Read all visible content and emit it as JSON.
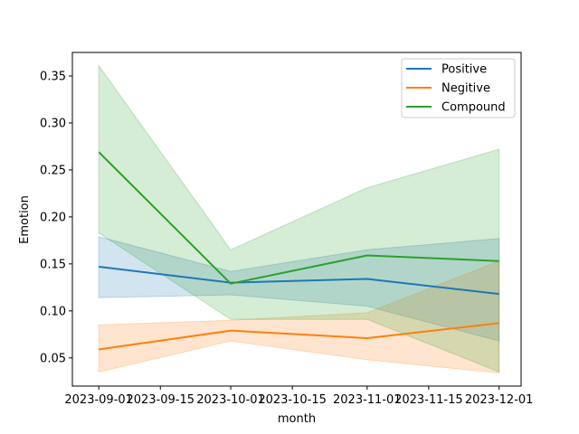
{
  "chart_data": {
    "type": "line",
    "xlabel": "month",
    "ylabel": "Emotion",
    "x": [
      "2023-09-01",
      "2023-10-01",
      "2023-11-01",
      "2023-12-01"
    ],
    "x_ticks": [
      "2023-09-01",
      "2023-09-15",
      "2023-10-01",
      "2023-10-15",
      "2023-11-01",
      "2023-11-15",
      "2023-12-01"
    ],
    "x_tick_labels": [
      "2023-09-01",
      "2023-09-15",
      "2023-10-01",
      "2023-10-15",
      "2023-11-01",
      "2023-11-15",
      "2023-12-01"
    ],
    "xlim": [
      "2023-08-26",
      "2023-12-06"
    ],
    "ylim": [
      0.02,
      0.375
    ],
    "y_ticks": [
      0.05,
      0.1,
      0.15,
      0.2,
      0.25,
      0.3,
      0.35
    ],
    "y_tick_labels": [
      "0.05",
      "0.10",
      "0.15",
      "0.20",
      "0.25",
      "0.30",
      "0.35"
    ],
    "grid": false,
    "legend_position": "top-right",
    "series": [
      {
        "name": "Positive",
        "color": "#1f77b4",
        "values": [
          0.147,
          0.13,
          0.134,
          0.118
        ],
        "ci_lower": [
          0.114,
          0.117,
          0.105,
          0.068
        ],
        "ci_upper": [
          0.179,
          0.142,
          0.165,
          0.177
        ]
      },
      {
        "name": "Negitive",
        "color": "#ff7f0e",
        "values": [
          0.059,
          0.079,
          0.071,
          0.087
        ],
        "ci_lower": [
          0.035,
          0.068,
          0.048,
          0.034
        ],
        "ci_upper": [
          0.085,
          0.09,
          0.098,
          0.153
        ]
      },
      {
        "name": "Compound",
        "color": "#2ca02c",
        "values": [
          0.269,
          0.129,
          0.159,
          0.153
        ],
        "ci_lower": [
          0.183,
          0.091,
          0.091,
          0.035
        ],
        "ci_upper": [
          0.361,
          0.165,
          0.231,
          0.272
        ]
      }
    ]
  }
}
